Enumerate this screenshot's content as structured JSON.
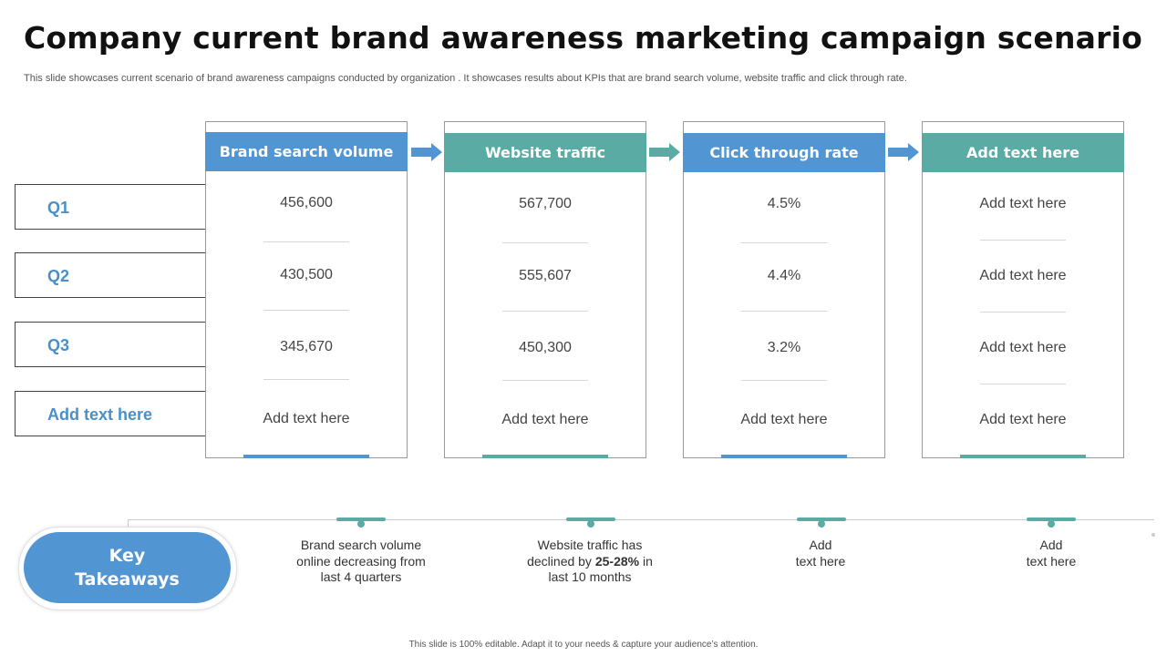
{
  "title": "Company current brand awareness marketing campaign scenario",
  "subtitle": "This slide showcases current scenario of brand awareness campaigns conducted by organization . It showcases results about KPIs that are brand search volume, website traffic and click through rate.",
  "rows": [
    "Q1",
    "Q2",
    "Q3",
    "Add text here"
  ],
  "colors": {
    "blue": "#5195d2",
    "teal": "#5aaba3"
  },
  "columns": [
    {
      "header": "Brand search volume",
      "color": "#5195d2",
      "values": [
        "456,600",
        "430,500",
        "345,670",
        "Add text here"
      ]
    },
    {
      "header": "Website traffic",
      "color": "#5aaba3",
      "values": [
        "567,700",
        "555,607",
        "450,300",
        "Add text here"
      ]
    },
    {
      "header": "Click through rate",
      "color": "#5195d2",
      "values": [
        "4.5%",
        "4.4%",
        "3.2%",
        "Add text here"
      ]
    },
    {
      "header": "Add text here",
      "color": "#5aaba3",
      "values": [
        "Add text here",
        "Add text here",
        "Add text here",
        "Add text here"
      ]
    }
  ],
  "key_takeaways": {
    "label_line1": "Key",
    "label_line2": "Takeaways",
    "items": [
      {
        "line1": "Brand search volume",
        "line2": "online decreasing from",
        "line3": "last 4 quarters"
      },
      {
        "line1": "Website traffic has",
        "line2_pre": "declined by ",
        "line2_bold": "25-28%",
        "line2_post": " in",
        "line3": "last 10 months"
      },
      {
        "line1": "Add",
        "line2": "text here"
      },
      {
        "line1": "Add",
        "line2": "text here"
      }
    ]
  },
  "footer": "This slide is 100% editable. Adapt it to your needs & capture your audience’s attention."
}
